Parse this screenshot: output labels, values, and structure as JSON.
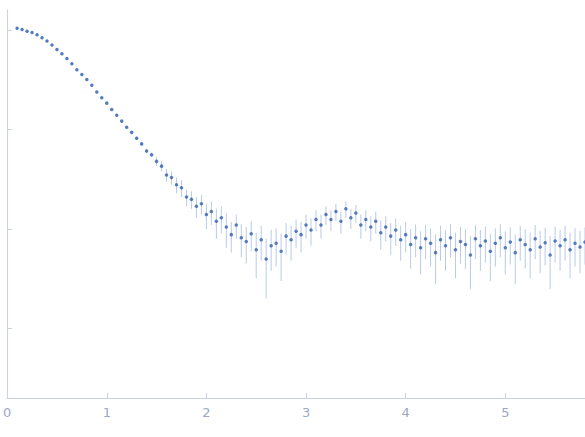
{
  "chart_data": {
    "type": "scatter",
    "color": "#2f5fb3",
    "log": "y",
    "tick_labels": "x",
    "grid": false,
    "xlim": [
      0,
      5.8
    ],
    "xticks": [
      0,
      1,
      2,
      3,
      4,
      5
    ],
    "ylim": [
      0.0002,
      1.6
    ],
    "yticks": [
      0.001,
      0.01,
      0.1,
      1
    ],
    "x": [
      0.1,
      0.15,
      0.2,
      0.25,
      0.3,
      0.35,
      0.4,
      0.45,
      0.5,
      0.55,
      0.6,
      0.65,
      0.7,
      0.75,
      0.8,
      0.85,
      0.9,
      0.95,
      1.0,
      1.05,
      1.1,
      1.15,
      1.2,
      1.25,
      1.3,
      1.35,
      1.4,
      1.45,
      1.5,
      1.55,
      1.6,
      1.65,
      1.7,
      1.75,
      1.8,
      1.85,
      1.9,
      1.95,
      2.0,
      2.05,
      2.1,
      2.15,
      2.2,
      2.25,
      2.3,
      2.35,
      2.4,
      2.45,
      2.5,
      2.55,
      2.6,
      2.65,
      2.7,
      2.75,
      2.8,
      2.85,
      2.9,
      2.95,
      3.0,
      3.05,
      3.1,
      3.15,
      3.2,
      3.25,
      3.3,
      3.35,
      3.4,
      3.45,
      3.5,
      3.55,
      3.6,
      3.65,
      3.7,
      3.75,
      3.8,
      3.85,
      3.9,
      3.95,
      4.0,
      4.05,
      4.1,
      4.15,
      4.2,
      4.25,
      4.3,
      4.35,
      4.4,
      4.45,
      4.5,
      4.55,
      4.6,
      4.65,
      4.7,
      4.75,
      4.8,
      4.85,
      4.9,
      4.95,
      5.0,
      5.05,
      5.1,
      5.15,
      5.2,
      5.25,
      5.3,
      5.35,
      5.4,
      5.45,
      5.5,
      5.55,
      5.6,
      5.65,
      5.7,
      5.75,
      5.8
    ],
    "values": [
      1.05,
      1.02,
      0.98,
      0.95,
      0.9,
      0.84,
      0.78,
      0.71,
      0.64,
      0.58,
      0.52,
      0.46,
      0.4,
      0.36,
      0.32,
      0.28,
      0.24,
      0.21,
      0.185,
      0.16,
      0.14,
      0.122,
      0.106,
      0.094,
      0.082,
      0.072,
      0.061,
      0.056,
      0.048,
      0.043,
      0.035,
      0.033,
      0.028,
      0.026,
      0.021,
      0.02,
      0.017,
      0.018,
      0.014,
      0.015,
      0.012,
      0.013,
      0.0105,
      0.0088,
      0.011,
      0.0082,
      0.0075,
      0.009,
      0.0062,
      0.0078,
      0.005,
      0.0068,
      0.0072,
      0.006,
      0.0085,
      0.0078,
      0.0095,
      0.0088,
      0.011,
      0.0098,
      0.0125,
      0.011,
      0.014,
      0.0125,
      0.015,
      0.012,
      0.016,
      0.013,
      0.0145,
      0.011,
      0.0125,
      0.0105,
      0.012,
      0.0092,
      0.0105,
      0.0085,
      0.0098,
      0.0078,
      0.0088,
      0.007,
      0.0082,
      0.0065,
      0.008,
      0.0072,
      0.0058,
      0.0078,
      0.0068,
      0.0082,
      0.0062,
      0.0075,
      0.007,
      0.0055,
      0.008,
      0.0068,
      0.0076,
      0.006,
      0.0072,
      0.0082,
      0.0065,
      0.0074,
      0.0058,
      0.0078,
      0.007,
      0.0062,
      0.008,
      0.0066,
      0.0073,
      0.0055,
      0.0076,
      0.0068,
      0.0078,
      0.0062,
      0.0072,
      0.0066,
      0.0074
    ],
    "errors": [
      0.03,
      0.02,
      0.02,
      0.02,
      0.02,
      0.02,
      0.015,
      0.014,
      0.013,
      0.012,
      0.01,
      0.009,
      0.008,
      0.007,
      0.006,
      0.006,
      0.005,
      0.004,
      0.004,
      0.004,
      0.003,
      0.003,
      0.003,
      0.003,
      0.003,
      0.003,
      0.003,
      0.003,
      0.005,
      0.005,
      0.005,
      0.005,
      0.005,
      0.005,
      0.004,
      0.004,
      0.004,
      0.004,
      0.004,
      0.004,
      0.004,
      0.004,
      0.004,
      0.003,
      0.003,
      0.003,
      0.003,
      0.003,
      0.003,
      0.003,
      0.003,
      0.003,
      0.003,
      0.003,
      0.003,
      0.003,
      0.003,
      0.003,
      0.003,
      0.003,
      0.003,
      0.003,
      0.003,
      0.003,
      0.003,
      0.003,
      0.003,
      0.003,
      0.003,
      0.003,
      0.003,
      0.003,
      0.003,
      0.003,
      0.003,
      0.003,
      0.003,
      0.003,
      0.003,
      0.003,
      0.003,
      0.003,
      0.003,
      0.003,
      0.003,
      0.003,
      0.003,
      0.003,
      0.003,
      0.003,
      0.003,
      0.003,
      0.003,
      0.003,
      0.003,
      0.003,
      0.003,
      0.003,
      0.003,
      0.003,
      0.003,
      0.003,
      0.003,
      0.003,
      0.003,
      0.003,
      0.003,
      0.003,
      0.003,
      0.003,
      0.003,
      0.003,
      0.003,
      0.003,
      0.003
    ]
  }
}
